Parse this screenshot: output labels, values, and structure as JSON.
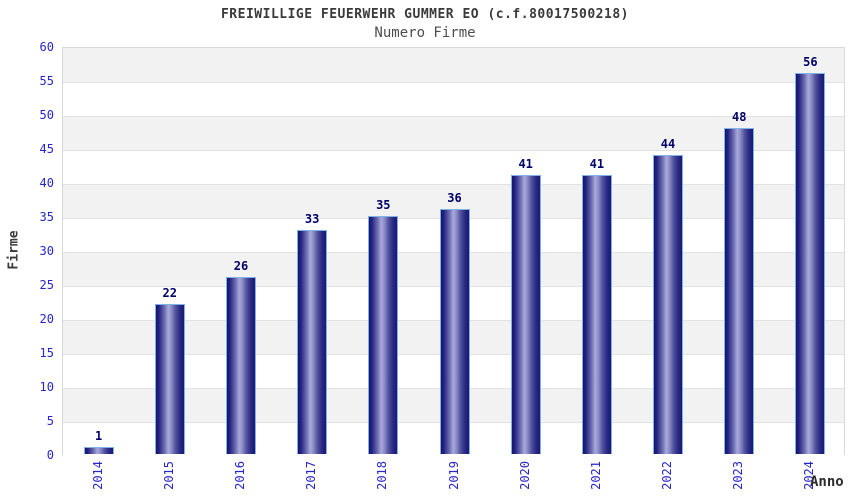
{
  "chart_data": {
    "type": "bar",
    "title": "FREIWILLIGE FEUERWEHR GUMMER EO (c.f.80017500218)",
    "subtitle": "Numero Firme",
    "xlabel": "Anno",
    "ylabel": "Firme",
    "categories": [
      "2014",
      "2015",
      "2016",
      "2017",
      "2018",
      "2019",
      "2020",
      "2021",
      "2022",
      "2023",
      "2024"
    ],
    "values": [
      1,
      22,
      26,
      33,
      35,
      36,
      41,
      41,
      44,
      48,
      56
    ],
    "ylim": [
      0,
      60
    ],
    "ytick_step": 5,
    "yticks": [
      0,
      5,
      10,
      15,
      20,
      25,
      30,
      35,
      40,
      45,
      50,
      55,
      60
    ],
    "grid": "horizontal gridlines with alternating gray/white bands",
    "legend": false,
    "colors": {
      "bar_dark": "#141472",
      "bar_light": "#a9a9da",
      "bar_border": "#7fb2e5",
      "tick_label": "#2626cc",
      "value_label": "#00006b",
      "title": "#3a3a3a",
      "subtitle": "#4d4d4d",
      "band_gray": "#f2f2f2",
      "gridline": "#e2e2e2",
      "plot_border": "#d8d8d8"
    }
  }
}
